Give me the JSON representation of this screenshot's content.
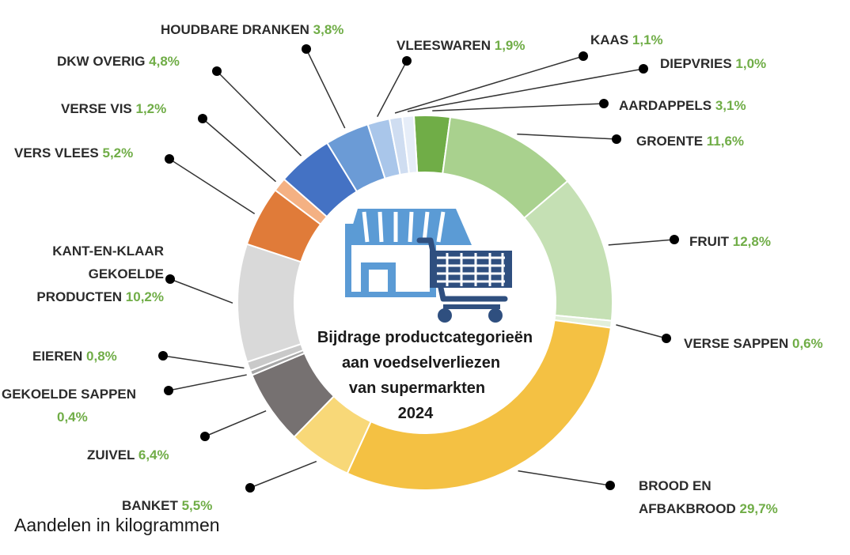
{
  "chart_data": {
    "type": "pie",
    "title": [
      "Bijdrage productcategorieën",
      "aan voedselverliezen",
      "van supermarkten",
      "2024"
    ],
    "slices": [
      {
        "name": "AARDAPPELS",
        "label_lines": [
          "AARDAPPELS"
        ],
        "pct_text": "3,1%",
        "value": 3.1,
        "color": "#70ad47"
      },
      {
        "name": "GROENTE",
        "label_lines": [
          "GROENTE"
        ],
        "pct_text": "11,6%",
        "value": 11.6,
        "color": "#a9d18e"
      },
      {
        "name": "FRUIT",
        "label_lines": [
          "FRUIT"
        ],
        "pct_text": "12,8%",
        "value": 12.8,
        "color": "#c5e0b4"
      },
      {
        "name": "VERSE SAPPEN",
        "label_lines": [
          "VERSE SAPPEN"
        ],
        "pct_text": "0,6%",
        "value": 0.6,
        "color": "#e2efda"
      },
      {
        "name": "BROOD EN AFBAKBROOD",
        "label_lines": [
          "BROOD EN",
          "AFBAKBROOD"
        ],
        "pct_text": "29,7%",
        "value": 29.7,
        "color": "#f4c143"
      },
      {
        "name": "BANKET",
        "label_lines": [
          "BANKET"
        ],
        "pct_text": "5,5%",
        "value": 5.5,
        "color": "#f8d878"
      },
      {
        "name": "ZUIVEL",
        "label_lines": [
          "ZUIVEL"
        ],
        "pct_text": "6,4%",
        "value": 6.4,
        "color": "#767171"
      },
      {
        "name": "GEKOELDE SAPPEN",
        "label_lines": [
          "GEKOELDE SAPPEN"
        ],
        "pct_text": "0,4%",
        "value": 0.4,
        "color": "#a6a6a6"
      },
      {
        "name": "EIEREN",
        "label_lines": [
          "EIEREN"
        ],
        "pct_text": "0,8%",
        "value": 0.8,
        "color": "#c9c9c9"
      },
      {
        "name": "KANT-EN-KLAAR GEKOELDE PRODUCTEN",
        "label_lines": [
          "KANT-EN-KLAAR",
          "GEKOELDE",
          "PRODUCTEN"
        ],
        "pct_text": "10,2%",
        "value": 10.2,
        "color": "#d9d9d9"
      },
      {
        "name": "VERS VLEES",
        "label_lines": [
          "VERS VLEES"
        ],
        "pct_text": "5,2%",
        "value": 5.2,
        "color": "#e07b39"
      },
      {
        "name": "VERSE VIS",
        "label_lines": [
          "VERSE VIS"
        ],
        "pct_text": "1,2%",
        "value": 1.2,
        "color": "#f4b183"
      },
      {
        "name": "DKW OVERIG",
        "label_lines": [
          "DKW OVERIG"
        ],
        "pct_text": "4,8%",
        "value": 4.8,
        "color": "#4472c4"
      },
      {
        "name": "HOUDBARE DRANKEN",
        "label_lines": [
          "HOUDBARE DRANKEN"
        ],
        "pct_text": "3,8%",
        "value": 3.8,
        "color": "#6b9bd6"
      },
      {
        "name": "VLEESWAREN",
        "label_lines": [
          "VLEESWAREN"
        ],
        "pct_text": "1,9%",
        "value": 1.9,
        "color": "#a9c6ea"
      },
      {
        "name": "KAAS",
        "label_lines": [
          "KAAS"
        ],
        "pct_text": "1,1%",
        "value": 1.1,
        "color": "#cfddf1"
      },
      {
        "name": "DIEPVRIES",
        "label_lines": [
          "DIEPVRIES"
        ],
        "pct_text": "1,0%",
        "value": 1.0,
        "color": "#e6edf8"
      }
    ]
  },
  "footnote": "Aandelen in kilogrammen"
}
